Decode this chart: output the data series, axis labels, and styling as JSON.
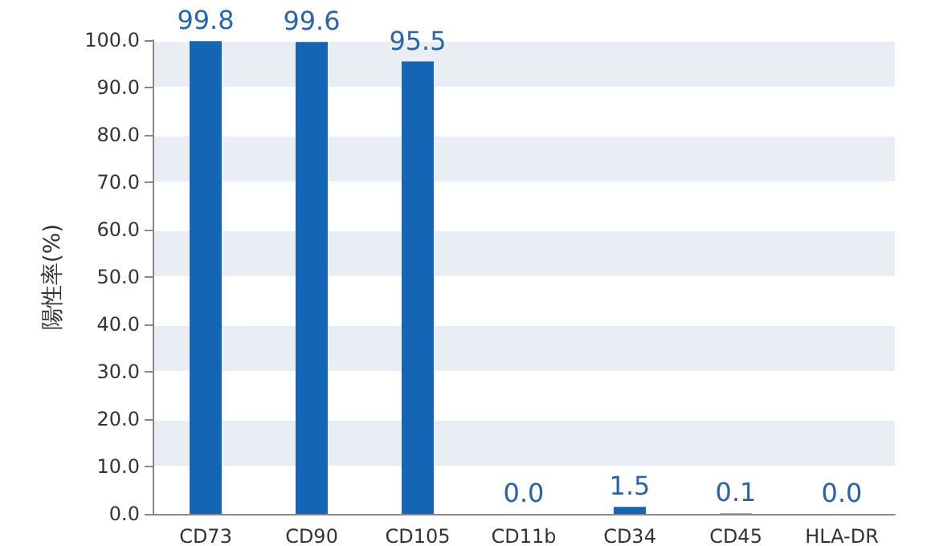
{
  "chart_data": {
    "type": "bar",
    "ylabel": "陽性率(%)",
    "categories": [
      "CD73",
      "CD90",
      "CD105",
      "CD11b",
      "CD34",
      "CD45",
      "HLA-DR"
    ],
    "values": [
      99.8,
      99.6,
      95.5,
      0.0,
      1.5,
      0.1,
      0.0
    ],
    "value_labels": [
      "99.8",
      "99.6",
      "95.5",
      "0.0",
      "1.5",
      "0.1",
      "0.0"
    ],
    "color": "#1565b5",
    "ylim": [
      0,
      100
    ],
    "yticks": [
      {
        "value": 0,
        "label": "0.0"
      },
      {
        "value": 10,
        "label": "10.0"
      },
      {
        "value": 20,
        "label": "20.0"
      },
      {
        "value": 30,
        "label": "30.0"
      },
      {
        "value": 40,
        "label": "40.0"
      },
      {
        "value": 50,
        "label": "50.0"
      },
      {
        "value": 60,
        "label": "60.0"
      },
      {
        "value": 70,
        "label": "70.0"
      },
      {
        "value": 80,
        "label": "80.0"
      },
      {
        "value": 90,
        "label": "90.0"
      },
      {
        "value": 100,
        "label": "100.0"
      }
    ],
    "grid": "y"
  }
}
